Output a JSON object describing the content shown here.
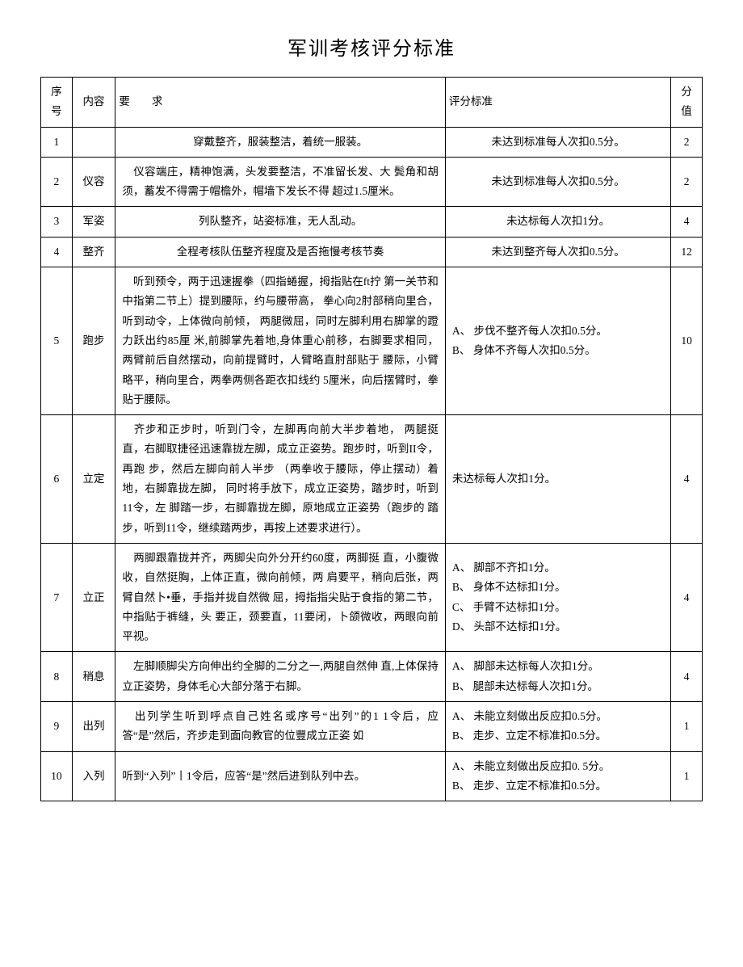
{
  "title": "军训考核评分标准",
  "headers": {
    "seq": "序 号",
    "content": "内容",
    "req": "要　　求",
    "std": "评分标准",
    "score": "分 值"
  },
  "rows": [
    {
      "seq": "1",
      "content": "",
      "req": "穿戴整齐，服装整洁，着统一服装。",
      "req_align": "center",
      "std": "未达到标准每人次扣0.5分。",
      "std_align": "center",
      "score": "2"
    },
    {
      "seq": "2",
      "content": "仪容",
      "req": "　仪容端庄，精神饱满，头发要整洁，不准留长发、大 鬓角和胡须，蓄发不得需于帽檐外，帽墙下发长不得 超过1.5厘米。",
      "req_align": "left",
      "std": "未达到标准每人次扣0.5分。",
      "std_align": "center",
      "score": "2"
    },
    {
      "seq": "3",
      "content": "军姿",
      "req": "列队整齐，站姿标准，无人乱动。",
      "req_align": "center",
      "std": "未达标每人次扣1分。",
      "std_align": "center",
      "score": "4"
    },
    {
      "seq": "4",
      "content": "整齐",
      "req": "全程考核队伍整齐程度及是否拖慢考核节奏",
      "req_align": "center",
      "std": "未达到整齐每人次扣0.5分。",
      "std_align": "center",
      "score": "12"
    },
    {
      "seq": "5",
      "content": "跑步",
      "req": "　听到预令，两于迅速握拳（四指蜷握，拇指贴在ft拧 第一关节和中指第二节上）提到腰际，约与腰带高， 拳心向2肘部稍向里合，听到动令，上体微向前倾， 两腿微屈，同时左脚利用右脚掌的蹬力跃出约85厘 米,前脚掌先着地,身体重心前移，右脚要求相同， 两臂前后自然摆动，向前提臂时，人臂略直肘部贴于 腰际，小臂略平，稍向里合，两拳两侧各距衣扣线约 5厘米，向后摆臂时，拳贴于腰际。",
      "req_align": "left",
      "std": "A、 步伐不整齐每人次扣0.5分。\nB、 身体不齐每人次扣0.5分。",
      "std_align": "left",
      "score": "10"
    },
    {
      "seq": "6",
      "content": "立定",
      "req": "　齐步和正步时，听到门令，左脚再向前大半步着地， 两腿挺直，右脚取捷径迅速靠拢左脚，成立正姿势。跑步时，听到II令，再跑 步，然后左脚向前人半步 （两拳收于腰际，停止摆动）着地，右脚靠拢左脚， 同时将手放下，成立正姿势，踏步时，听到11令，左 脚踏一步，右脚靠拢左脚，原地成立正姿势（跑步的 踏步，听到11令，继续踏两步，再按上述要求进行）。",
      "req_align": "left",
      "std": "未达标每人次扣1分。",
      "std_align": "left",
      "score": "4"
    },
    {
      "seq": "7",
      "content": "立正",
      "req": "　两脚跟靠拢并齐，两脚尖向外分开约60度，两脚挺 直，小腹微收，自然挺胸，上体正直，微向前倾，两 肩要平，稍向后张，两臂自然卜•垂，手指并拢自然微 屈，拇指指尖贴于食指的第二节，中指贴于裤缝，头 要正，颈要直，11要闭，卜颌微收，两眼向前平视。",
      "req_align": "left",
      "std": "A、 脚部不齐扣1分。\nB、 身体不达标扣1分。\nC、 手臂不达标扣1分。\nD、 头部不达标扣1分。",
      "std_align": "left",
      "score": "4"
    },
    {
      "seq": "8",
      "content": "稍息",
      "req": "　左脚顺脚尖方向伸出约全脚的二分之一,两腿自然伸 直,上体保持立正姿势，身体毛心大部分落于右脚。",
      "req_align": "left",
      "std": "A、 脚部未达标每人次扣1分。\nB、 腿部未达标每人次扣1分。",
      "std_align": "left",
      "score": "4"
    },
    {
      "seq": "9",
      "content": "出列",
      "req": "　出列学生听到呼点自己姓名或序号“出列”的1 1令后，应答“是”然后，齐步走到面向教官的位豐成立正姿 如",
      "req_align": "left",
      "std": "A、 未能立刻做出反应扣0.5分。\nB、 走步、立定不标准扣0.5分。",
      "std_align": "left",
      "score": "1"
    },
    {
      "seq": "10",
      "content": "入列",
      "req": "听到“入列”丨1令后，应答“是”然后进到队列中去。",
      "req_align": "left",
      "std": "A、 未能立刻做出反应扣0. 5分。\nB、 走步、立定不标准扣0.5分。",
      "std_align": "left",
      "score": "1"
    }
  ]
}
